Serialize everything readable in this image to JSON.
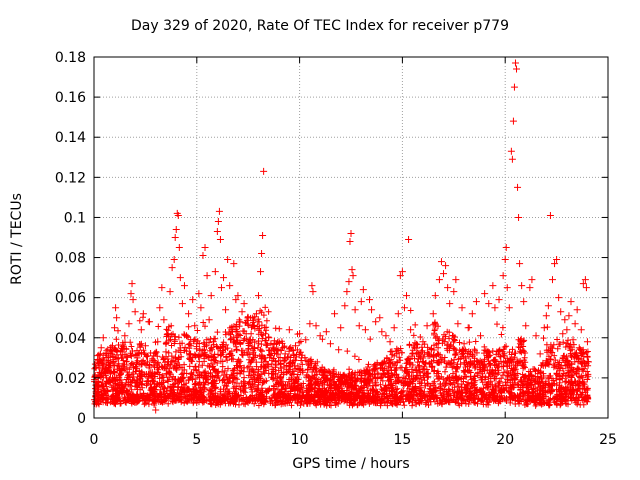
{
  "chart_data": {
    "type": "scatter",
    "title": "Day 329 of 2020, Rate Of TEC Index for receiver p779",
    "xlabel": "GPS time / hours",
    "ylabel": "ROTI / TECUs",
    "xlim": [
      0,
      25
    ],
    "ylim": [
      0,
      0.18
    ],
    "xticks": [
      0,
      5,
      10,
      15,
      20,
      25
    ],
    "xtick_labels": [
      "0",
      "5",
      "10",
      "15",
      "20",
      "25"
    ],
    "yticks": [
      0,
      0.02,
      0.04,
      0.06,
      0.08,
      0.1,
      0.12,
      0.14,
      0.16,
      0.18
    ],
    "ytick_labels": [
      "0",
      "0.02",
      "0.04",
      "0.06",
      "0.08",
      "0.1",
      "0.12",
      "0.14",
      "0.16",
      "0.18"
    ],
    "grid": true,
    "marker": "+",
    "color": "#ff0000",
    "series": [
      {
        "name": "ROTI",
        "points": [
          [
            0.1,
            0.013
          ],
          [
            0.2,
            0.02
          ],
          [
            0.3,
            0.028
          ],
          [
            0.35,
            0.035
          ],
          [
            0.45,
            0.04
          ],
          [
            0.5,
            0.024
          ],
          [
            0.6,
            0.017
          ],
          [
            0.7,
            0.031
          ],
          [
            0.8,
            0.022
          ],
          [
            0.9,
            0.036
          ],
          [
            1.0,
            0.045
          ],
          [
            1.05,
            0.055
          ],
          [
            1.1,
            0.05
          ],
          [
            1.2,
            0.027
          ],
          [
            1.3,
            0.019
          ],
          [
            1.4,
            0.033
          ],
          [
            1.5,
            0.041
          ],
          [
            1.6,
            0.025
          ],
          [
            1.7,
            0.047
          ],
          [
            1.8,
            0.062
          ],
          [
            1.85,
            0.067
          ],
          [
            1.9,
            0.059
          ],
          [
            2.0,
            0.053
          ],
          [
            2.1,
            0.03
          ],
          [
            2.2,
            0.022
          ],
          [
            2.3,
            0.044
          ],
          [
            2.4,
            0.052
          ],
          [
            2.5,
            0.036
          ],
          [
            2.6,
            0.028
          ],
          [
            2.7,
            0.048
          ],
          [
            2.8,
            0.014
          ],
          [
            2.9,
            0.031
          ],
          [
            3.0,
            0.004
          ],
          [
            3.1,
            0.038
          ],
          [
            3.2,
            0.055
          ],
          [
            3.3,
            0.065
          ],
          [
            3.4,
            0.049
          ],
          [
            3.5,
            0.033
          ],
          [
            3.6,
            0.042
          ],
          [
            3.7,
            0.063
          ],
          [
            3.8,
            0.075
          ],
          [
            3.9,
            0.079
          ],
          [
            3.95,
            0.09
          ],
          [
            4.0,
            0.094
          ],
          [
            4.05,
            0.102
          ],
          [
            4.1,
            0.101
          ],
          [
            4.15,
            0.085
          ],
          [
            4.2,
            0.07
          ],
          [
            4.3,
            0.057
          ],
          [
            4.4,
            0.066
          ],
          [
            4.5,
            0.041
          ],
          [
            4.6,
            0.052
          ],
          [
            4.7,
            0.032
          ],
          [
            4.8,
            0.059
          ],
          [
            4.9,
            0.046
          ],
          [
            5.0,
            0.037
          ],
          [
            5.1,
            0.062
          ],
          [
            5.2,
            0.055
          ],
          [
            5.3,
            0.081
          ],
          [
            5.4,
            0.085
          ],
          [
            5.5,
            0.071
          ],
          [
            5.6,
            0.049
          ],
          [
            5.7,
            0.061
          ],
          [
            5.8,
            0.038
          ],
          [
            5.9,
            0.073
          ],
          [
            6.0,
            0.093
          ],
          [
            6.05,
            0.098
          ],
          [
            6.1,
            0.103
          ],
          [
            6.15,
            0.089
          ],
          [
            6.2,
            0.065
          ],
          [
            6.3,
            0.07
          ],
          [
            6.4,
            0.054
          ],
          [
            6.5,
            0.079
          ],
          [
            6.6,
            0.066
          ],
          [
            6.7,
            0.044
          ],
          [
            6.8,
            0.077
          ],
          [
            6.9,
            0.059
          ],
          [
            7.0,
            0.061
          ],
          [
            7.1,
            0.048
          ],
          [
            7.2,
            0.053
          ],
          [
            7.3,
            0.057
          ],
          [
            7.4,
            0.042
          ],
          [
            7.5,
            0.05
          ],
          [
            7.6,
            0.039
          ],
          [
            7.7,
            0.046
          ],
          [
            7.8,
            0.035
          ],
          [
            7.9,
            0.052
          ],
          [
            8.0,
            0.061
          ],
          [
            8.1,
            0.073
          ],
          [
            8.15,
            0.082
          ],
          [
            8.2,
            0.091
          ],
          [
            8.25,
            0.123
          ],
          [
            8.3,
            0.045
          ],
          [
            8.5,
            0.04
          ],
          [
            8.7,
            0.035
          ],
          [
            9.0,
            0.038
          ],
          [
            9.3,
            0.032
          ],
          [
            9.5,
            0.044
          ],
          [
            9.8,
            0.036
          ],
          [
            10.0,
            0.042
          ],
          [
            10.3,
            0.039
          ],
          [
            10.5,
            0.047
          ],
          [
            10.6,
            0.066
          ],
          [
            10.65,
            0.063
          ],
          [
            10.8,
            0.046
          ],
          [
            11.0,
            0.041
          ],
          [
            11.3,
            0.043
          ],
          [
            11.5,
            0.037
          ],
          [
            11.7,
            0.052
          ],
          [
            11.9,
            0.034
          ],
          [
            12.0,
            0.045
          ],
          [
            12.2,
            0.056
          ],
          [
            12.3,
            0.063
          ],
          [
            12.4,
            0.068
          ],
          [
            12.45,
            0.088
          ],
          [
            12.5,
            0.092
          ],
          [
            12.55,
            0.074
          ],
          [
            12.6,
            0.071
          ],
          [
            12.7,
            0.054
          ],
          [
            12.9,
            0.046
          ],
          [
            13.0,
            0.058
          ],
          [
            13.1,
            0.064
          ],
          [
            13.2,
            0.044
          ],
          [
            13.4,
            0.059
          ],
          [
            13.5,
            0.054
          ],
          [
            13.7,
            0.048
          ],
          [
            13.9,
            0.05
          ],
          [
            14.0,
            0.043
          ],
          [
            14.2,
            0.041
          ],
          [
            14.4,
            0.038
          ],
          [
            14.6,
            0.045
          ],
          [
            14.8,
            0.052
          ],
          [
            14.9,
            0.071
          ],
          [
            15.0,
            0.073
          ],
          [
            15.1,
            0.055
          ],
          [
            15.2,
            0.061
          ],
          [
            15.3,
            0.089
          ],
          [
            15.4,
            0.044
          ],
          [
            15.6,
            0.035
          ],
          [
            15.8,
            0.032
          ],
          [
            16.0,
            0.038
          ],
          [
            16.2,
            0.046
          ],
          [
            16.4,
            0.034
          ],
          [
            16.5,
            0.052
          ],
          [
            16.6,
            0.061
          ],
          [
            16.8,
            0.069
          ],
          [
            16.9,
            0.078
          ],
          [
            17.0,
            0.072
          ],
          [
            17.1,
            0.076
          ],
          [
            17.2,
            0.065
          ],
          [
            17.3,
            0.057
          ],
          [
            17.5,
            0.063
          ],
          [
            17.6,
            0.069
          ],
          [
            17.7,
            0.047
          ],
          [
            17.9,
            0.055
          ],
          [
            18.0,
            0.037
          ],
          [
            18.2,
            0.045
          ],
          [
            18.4,
            0.052
          ],
          [
            18.6,
            0.058
          ],
          [
            18.8,
            0.041
          ],
          [
            19.0,
            0.062
          ],
          [
            19.2,
            0.057
          ],
          [
            19.4,
            0.066
          ],
          [
            19.5,
            0.055
          ],
          [
            19.7,
            0.059
          ],
          [
            19.9,
            0.071
          ],
          [
            20.0,
            0.079
          ],
          [
            20.05,
            0.085
          ],
          [
            20.1,
            0.065
          ],
          [
            20.2,
            0.055
          ],
          [
            20.3,
            0.133
          ],
          [
            20.35,
            0.129
          ],
          [
            20.4,
            0.148
          ],
          [
            20.45,
            0.165
          ],
          [
            20.5,
            0.177
          ],
          [
            20.55,
            0.174
          ],
          [
            20.6,
            0.115
          ],
          [
            20.65,
            0.1
          ],
          [
            20.7,
            0.077
          ],
          [
            20.8,
            0.066
          ],
          [
            20.9,
            0.058
          ],
          [
            21.0,
            0.046
          ],
          [
            21.2,
            0.065
          ],
          [
            21.3,
            0.069
          ],
          [
            21.5,
            0.041
          ],
          [
            21.7,
            0.032
          ],
          [
            21.9,
            0.045
          ],
          [
            22.0,
            0.051
          ],
          [
            22.1,
            0.056
          ],
          [
            22.2,
            0.101
          ],
          [
            22.3,
            0.069
          ],
          [
            22.4,
            0.077
          ],
          [
            22.5,
            0.079
          ],
          [
            22.6,
            0.06
          ],
          [
            22.7,
            0.053
          ],
          [
            22.8,
            0.042
          ],
          [
            22.9,
            0.049
          ],
          [
            23.0,
            0.044
          ],
          [
            23.1,
            0.051
          ],
          [
            23.2,
            0.058
          ],
          [
            23.3,
            0.039
          ],
          [
            23.4,
            0.047
          ],
          [
            23.5,
            0.054
          ],
          [
            23.6,
            0.035
          ],
          [
            23.7,
            0.044
          ],
          [
            23.8,
            0.067
          ],
          [
            23.9,
            0.069
          ],
          [
            23.95,
            0.065
          ],
          [
            24.0,
            0.038
          ],
          [
            24.05,
            0.028
          ]
        ]
      }
    ]
  }
}
